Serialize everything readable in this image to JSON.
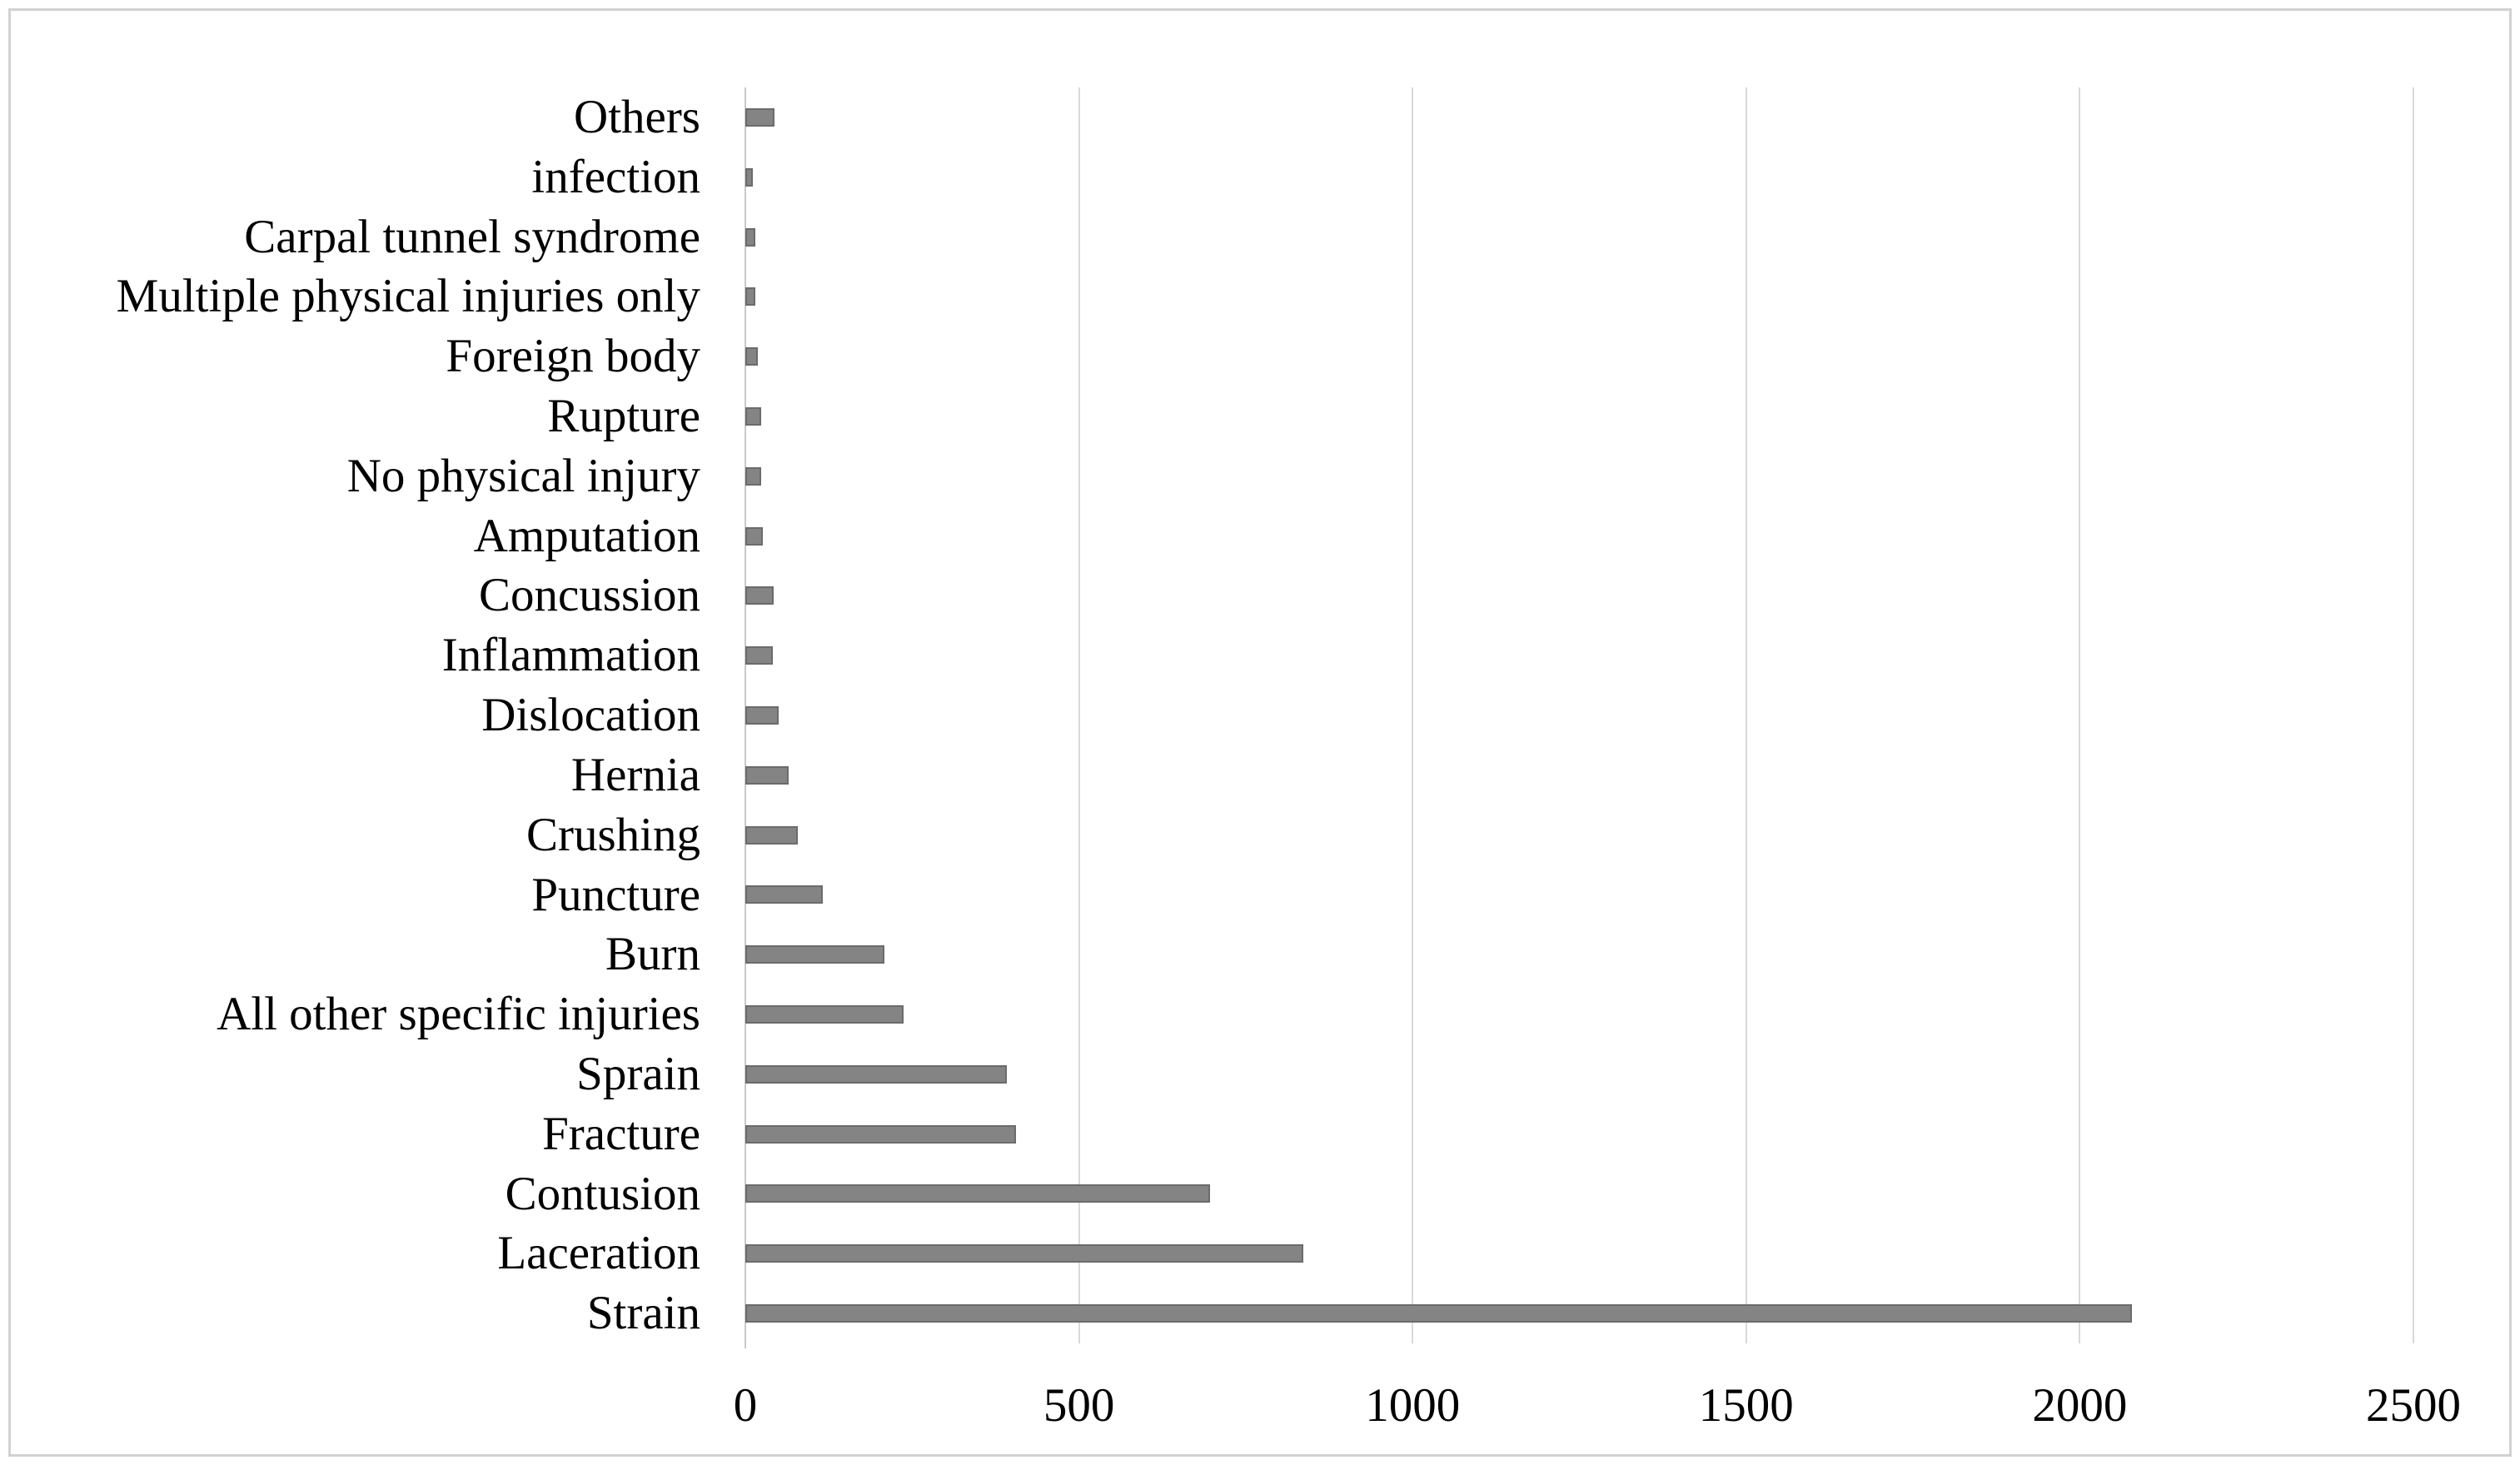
{
  "figure": {
    "background": "#ffffff",
    "frame_border_color": "#d2d2d2"
  },
  "chart_data": {
    "type": "bar",
    "orientation": "horizontal",
    "title": "",
    "xlabel": "",
    "ylabel": "",
    "legend": "none",
    "grid": "vertical-gridlines",
    "categories": [
      "Others",
      "infection",
      "Carpal tunnel syndrome",
      "Multiple physical injuries only",
      "Foreign body",
      "Rupture",
      "No physical injury",
      "Amputation",
      "Concussion",
      "Inflammation",
      "Dislocation",
      "Hernia",
      "Crushing",
      "Puncture",
      "Burn",
      "All other specific injuries",
      "Sprain",
      "Fracture",
      "Contusion",
      "Laceration",
      "Strain"
    ],
    "values": [
      44,
      11,
      15,
      15,
      19,
      24,
      24,
      26,
      42,
      41,
      50,
      65,
      79,
      116,
      208,
      237,
      392,
      406,
      697,
      836,
      2078
    ],
    "x_ticks": [
      "0",
      "500",
      "1000",
      "1500",
      "2000",
      "2500"
    ],
    "xlim": [
      0,
      2500
    ],
    "bar_color": "#848484",
    "bar_border_color": "#6b6b6b",
    "gridline_color": "#d9d9d9",
    "axis_line_color": "#c9c9c9",
    "text_color": "#000000"
  }
}
